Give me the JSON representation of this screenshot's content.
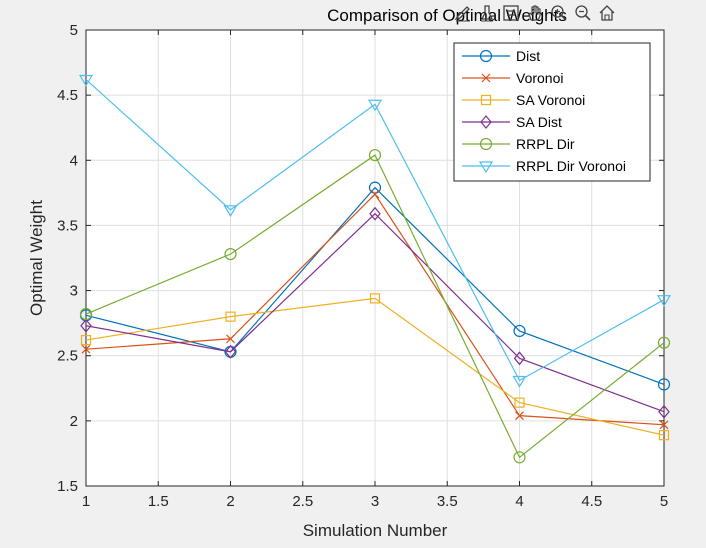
{
  "toolbar": {
    "icons": [
      "edit-data-icon",
      "brush-icon",
      "data-tips-icon",
      "pan-hand-icon",
      "zoom-in-icon",
      "zoom-out-icon",
      "restore-view-icon"
    ]
  },
  "chart_data": {
    "type": "line",
    "title": "Comparison of Optimal Weights",
    "xlabel": "Simulation Number",
    "ylabel": "Optimal Weight",
    "xlim": [
      1,
      5
    ],
    "ylim": [
      1.5,
      5
    ],
    "xticks": [
      "1",
      "1.5",
      "2",
      "2.5",
      "3",
      "3.5",
      "4",
      "4.5",
      "5"
    ],
    "yticks": [
      "1.5",
      "2",
      "2.5",
      "3",
      "3.5",
      "4",
      "4.5",
      "5"
    ],
    "grid": true,
    "legend_position": "top-right",
    "x": [
      1,
      2,
      3,
      4,
      5
    ],
    "series": [
      {
        "name": "Dist",
        "marker": "circle",
        "color": "#0072BD",
        "values": [
          2.81,
          2.53,
          3.79,
          2.69,
          2.28
        ]
      },
      {
        "name": "Voronoi",
        "marker": "x",
        "color": "#D95319",
        "values": [
          2.55,
          2.63,
          3.74,
          2.04,
          1.97
        ]
      },
      {
        "name": "SA Voronoi",
        "marker": "square",
        "color": "#EDB120",
        "values": [
          2.62,
          2.8,
          2.94,
          2.14,
          1.89
        ]
      },
      {
        "name": "SA Dist",
        "marker": "diamond",
        "color": "#7E2F8E",
        "values": [
          2.73,
          2.53,
          3.59,
          2.48,
          2.07
        ]
      },
      {
        "name": "RRPL Dir",
        "marker": "circle",
        "color": "#77AC30",
        "values": [
          2.82,
          3.28,
          4.04,
          1.72,
          2.6
        ]
      },
      {
        "name": "RRPL Dir Voronoi",
        "marker": "triangle-down",
        "color": "#4DBEEE",
        "values": [
          4.62,
          3.62,
          4.43,
          2.31,
          2.93
        ]
      }
    ]
  }
}
